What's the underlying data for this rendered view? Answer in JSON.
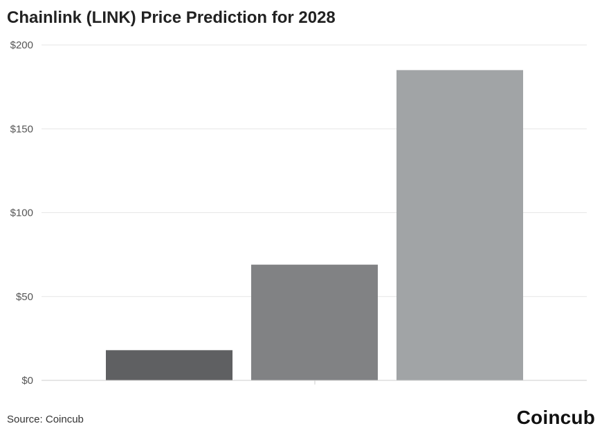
{
  "chart_data": {
    "type": "bar",
    "title": "Chainlink (LINK) Price Prediction for 2028",
    "categories": [
      "",
      "",
      ""
    ],
    "values": [
      18,
      69,
      185
    ],
    "colors": [
      "#5f6062",
      "#818284",
      "#a1a4a6"
    ],
    "yticks": [
      "$0",
      "$50",
      "$100",
      "$150",
      "$200"
    ],
    "ylim": [
      0,
      200
    ],
    "ytick_values": [
      0,
      50,
      100,
      150,
      200
    ],
    "grid": true,
    "xlabel": "",
    "ylabel": ""
  },
  "footer": {
    "source": "Source: Coincub",
    "brand": "Coincub"
  }
}
